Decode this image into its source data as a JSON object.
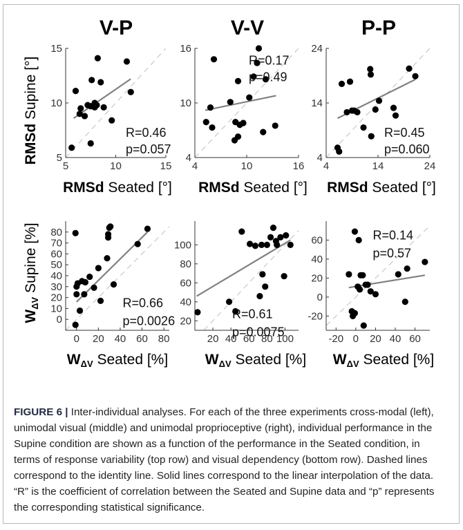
{
  "column_titles": [
    "V-P",
    "V-V",
    "P-P"
  ],
  "caption": {
    "label": "FIGURE 6 |",
    "text": " Inter-individual analyses. For each of the three experiments cross-modal (left), unimodal visual (middle) and unimodal proprioceptive (right), individual performance in the Supine condition are shown as a function of the performance in the Seated condition, in terms of response variability (top row) and visual dependency (bottom row). Dashed lines correspond to the identity line. Solid lines correspond to the linear interpolation of the data. “R” is the coefficient of correlation between the Seated and Supine data and “p” represents the corresponding statistical significance."
  },
  "row_labels": {
    "top": {
      "y_bold": "RMSd",
      "y_rest": " Supine [°]",
      "x_bold": "RMSd",
      "x_rest": " Seated [°]"
    },
    "bottom": {
      "y_bold": "W",
      "y_sub": "ΔV",
      "y_rest": " Supine [%]",
      "x_bold": "W",
      "x_sub": "ΔV",
      "x_rest": " Seated [%]"
    }
  },
  "colors": {
    "points": "#000000",
    "fit": "#808080",
    "identity": "#c8c8c8",
    "axis": "#333333"
  },
  "chart_data": [
    {
      "type": "scatter",
      "panel": "V-P / RMSd",
      "xlim": [
        5,
        15
      ],
      "ylim": [
        5,
        15
      ],
      "xticks": [
        5,
        10,
        15
      ],
      "yticks": [
        5,
        10,
        15
      ],
      "tick_labels_x": [
        "5",
        "10",
        "15"
      ],
      "tick_labels_y": [
        "5",
        "10",
        "15"
      ],
      "points": [
        [
          5.6,
          5.9
        ],
        [
          6.0,
          11.1
        ],
        [
          6.4,
          9.0
        ],
        [
          6.5,
          9.5
        ],
        [
          6.9,
          8.8
        ],
        [
          7.2,
          9.8
        ],
        [
          7.5,
          9.7
        ],
        [
          7.6,
          12.1
        ],
        [
          7.9,
          9.6
        ],
        [
          8.1,
          9.8
        ],
        [
          8.2,
          14.1
        ],
        [
          8.5,
          11.9
        ],
        [
          8.8,
          9.6
        ],
        [
          7.5,
          6.3
        ],
        [
          9.6,
          8.4
        ],
        [
          11.1,
          13.8
        ],
        [
          11.5,
          11.0
        ],
        [
          7.9,
          10.0
        ]
      ],
      "fit": [
        [
          5.8,
          8.6
        ],
        [
          11.5,
          12.2
        ]
      ],
      "annotation": [
        "R=0.46",
        "p=0.057"
      ]
    },
    {
      "type": "scatter",
      "panel": "V-V / RMSd",
      "xlim": [
        4,
        16
      ],
      "ylim": [
        4,
        16
      ],
      "xticks": [
        4,
        10,
        16
      ],
      "yticks": [
        4,
        10,
        16
      ],
      "tick_labels_x": [
        "4",
        "10",
        "16"
      ],
      "tick_labels_y": [
        "4",
        "10",
        "16"
      ],
      "points": [
        [
          5.3,
          7.9
        ],
        [
          5.8,
          9.5
        ],
        [
          6.0,
          7.3
        ],
        [
          6.2,
          14.8
        ],
        [
          8.1,
          10.1
        ],
        [
          8.6,
          5.9
        ],
        [
          8.7,
          7.9
        ],
        [
          9.0,
          6.3
        ],
        [
          9.2,
          7.6
        ],
        [
          9.6,
          7.8
        ],
        [
          9.0,
          12.4
        ],
        [
          10.3,
          10.6
        ],
        [
          10.8,
          12.9
        ],
        [
          11.2,
          14.4
        ],
        [
          11.4,
          16.0
        ],
        [
          11.9,
          6.8
        ],
        [
          12.2,
          12.6
        ],
        [
          13.3,
          7.5
        ]
      ],
      "fit": [
        [
          5.2,
          9.2
        ],
        [
          13.4,
          10.8
        ]
      ],
      "annotation": [
        "R=0.17",
        "p=0.49"
      ]
    },
    {
      "type": "scatter",
      "panel": "P-P / RMSd",
      "xlim": [
        4,
        24
      ],
      "ylim": [
        4,
        24
      ],
      "xticks": [
        4,
        14,
        24
      ],
      "yticks": [
        4,
        14,
        24
      ],
      "tick_labels_x": [
        "4",
        "14",
        "24"
      ],
      "tick_labels_y": [
        "4",
        "14",
        "24"
      ],
      "points": [
        [
          6.2,
          5.8
        ],
        [
          6.5,
          5.1
        ],
        [
          7.0,
          17.5
        ],
        [
          8.0,
          12.3
        ],
        [
          8.6,
          17.9
        ],
        [
          9.0,
          12.6
        ],
        [
          9.4,
          12.6
        ],
        [
          10.0,
          12.3
        ],
        [
          11.2,
          9.5
        ],
        [
          12.5,
          20.2
        ],
        [
          12.6,
          19.2
        ],
        [
          13.5,
          12.8
        ],
        [
          14.2,
          14.4
        ],
        [
          17.0,
          13.1
        ],
        [
          17.4,
          11.7
        ],
        [
          20.0,
          20.3
        ],
        [
          21.2,
          18.9
        ],
        [
          12.7,
          7.9
        ]
      ],
      "fit": [
        [
          6.2,
          11.2
        ],
        [
          21.2,
          18.3
        ]
      ],
      "annotation": [
        "R=0.45",
        "p=0.060"
      ]
    },
    {
      "type": "scatter",
      "panel": "V-P / WΔV",
      "xlim": [
        -10,
        85
      ],
      "ylim": [
        -10,
        90
      ],
      "xticks": [
        0,
        20,
        40,
        60,
        80
      ],
      "yticks": [
        0,
        10,
        20,
        30,
        40,
        50,
        60,
        70,
        80
      ],
      "tick_labels_x": [
        "0",
        "20",
        "40",
        "60",
        "80"
      ],
      "tick_labels_y": [
        "0",
        "10",
        "20",
        "30",
        "40",
        "50",
        "60",
        "70",
        "80"
      ],
      "points": [
        [
          -1,
          79
        ],
        [
          -1,
          -5
        ],
        [
          0,
          30
        ],
        [
          0,
          23
        ],
        [
          1,
          33
        ],
        [
          3,
          8
        ],
        [
          5,
          35
        ],
        [
          7,
          23
        ],
        [
          8,
          34
        ],
        [
          12,
          39
        ],
        [
          16,
          29
        ],
        [
          20,
          47
        ],
        [
          22,
          17
        ],
        [
          28,
          56
        ],
        [
          29,
          75
        ],
        [
          29,
          78
        ],
        [
          30,
          84
        ],
        [
          31,
          85
        ],
        [
          34,
          32
        ],
        [
          56,
          69
        ],
        [
          65,
          83
        ]
      ],
      "fit": [
        [
          0,
          16
        ],
        [
          65,
          80
        ]
      ],
      "annotation": [
        "R=0.66",
        "p=0.0026"
      ]
    },
    {
      "type": "scatter",
      "panel": "V-V / WΔV",
      "xlim": [
        0,
        115
      ],
      "ylim": [
        10,
        125
      ],
      "xticks": [
        20,
        40,
        60,
        80,
        100
      ],
      "yticks": [
        20,
        40,
        60,
        80,
        100
      ],
      "tick_labels_x": [
        "20",
        "40",
        "60",
        "80",
        "100"
      ],
      "tick_labels_y": [
        "20",
        "40",
        "60",
        "80",
        "100"
      ],
      "points": [
        [
          3,
          29
        ],
        [
          38,
          40
        ],
        [
          45,
          30
        ],
        [
          52,
          114
        ],
        [
          61,
          101
        ],
        [
          67,
          99
        ],
        [
          72,
          46
        ],
        [
          74,
          100
        ],
        [
          75,
          69
        ],
        [
          78,
          56
        ],
        [
          80,
          100
        ],
        [
          84,
          108
        ],
        [
          87,
          118
        ],
        [
          90,
          104
        ],
        [
          91,
          100
        ],
        [
          95,
          108
        ],
        [
          99,
          67
        ],
        [
          101,
          110
        ],
        [
          106,
          100
        ]
      ],
      "fit": [
        [
          2,
          46
        ],
        [
          106,
          105
        ]
      ],
      "annotation": [
        "R=0.61",
        "p=0.0075"
      ]
    },
    {
      "type": "scatter",
      "panel": "P-P / WΔV",
      "xlim": [
        -30,
        75
      ],
      "ylim": [
        -35,
        80
      ],
      "xticks": [
        -20,
        0,
        20,
        40,
        60
      ],
      "yticks": [
        -20,
        0,
        20,
        40,
        60
      ],
      "tick_labels_x": [
        "-20",
        "0",
        "20",
        "40",
        "60"
      ],
      "tick_labels_y": [
        "-20",
        "0",
        "20",
        "40",
        "60"
      ],
      "points": [
        [
          -7,
          24
        ],
        [
          -4,
          -15
        ],
        [
          -3,
          -20
        ],
        [
          -1,
          -17
        ],
        [
          -1,
          69
        ],
        [
          2,
          11
        ],
        [
          3,
          60
        ],
        [
          4,
          8
        ],
        [
          5,
          23
        ],
        [
          7,
          23
        ],
        [
          8,
          -30
        ],
        [
          10,
          13
        ],
        [
          12,
          13
        ],
        [
          15,
          6
        ],
        [
          20,
          3
        ],
        [
          43,
          24
        ],
        [
          50,
          -5
        ],
        [
          52,
          30
        ],
        [
          70,
          37
        ]
      ],
      "fit": [
        [
          -7,
          10
        ],
        [
          70,
          23
        ]
      ],
      "annotation": [
        "R=0.14",
        "p=0.57"
      ]
    }
  ]
}
